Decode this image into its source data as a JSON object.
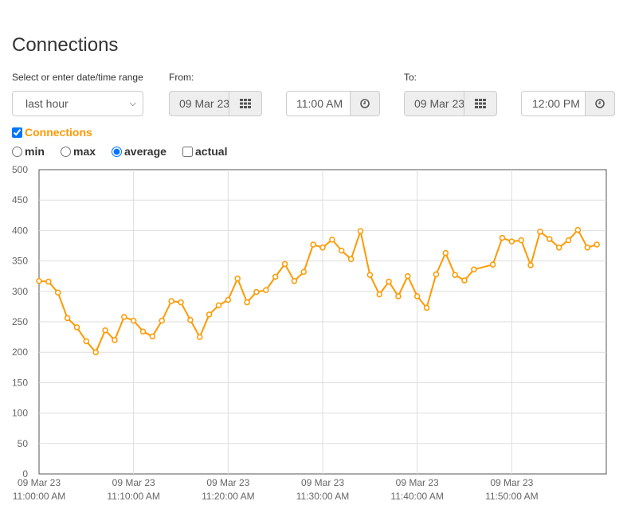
{
  "page_title": "Connections",
  "range": {
    "label": "Select or enter date/time range",
    "value": "last hour"
  },
  "from": {
    "label": "From:",
    "date": "09 Mar 23",
    "time": "11:00 AM"
  },
  "to": {
    "label": "To:",
    "date": "09 Mar 23",
    "time": "12:00 PM"
  },
  "series_toggle": {
    "label": "Connections",
    "checked": true
  },
  "modes": [
    {
      "label": "min",
      "selected": false
    },
    {
      "label": "max",
      "selected": false
    },
    {
      "label": "average",
      "selected": true
    }
  ],
  "actual": {
    "label": "actual",
    "checked": false
  },
  "colors": {
    "series": "#ff9900",
    "grid": "#dddddd",
    "axis": "#555555",
    "accent": "#ff9900"
  },
  "icons": {
    "date_button": "grid-calendar-icon",
    "time_button": "clock-icon"
  },
  "chart_data": {
    "type": "line",
    "title": "",
    "xlabel": "",
    "ylabel": "",
    "ylim": [
      0,
      500
    ],
    "yticks": [
      "0",
      "50",
      "100",
      "150",
      "200",
      "250",
      "300",
      "350",
      "400",
      "450",
      "500"
    ],
    "xlim": [
      0,
      59
    ],
    "xticks": [
      {
        "x": 0,
        "date": "09 Mar 23",
        "time": "11:00:00 AM"
      },
      {
        "x": 10,
        "date": "09 Mar 23",
        "time": "11:10:00 AM"
      },
      {
        "x": 20,
        "date": "09 Mar 23",
        "time": "11:20:00 AM"
      },
      {
        "x": 30,
        "date": "09 Mar 23",
        "time": "11:30:00 AM"
      },
      {
        "x": 40,
        "date": "09 Mar 23",
        "time": "11:40:00 AM"
      },
      {
        "x": 50,
        "date": "09 Mar 23",
        "time": "11:50:00 AM"
      }
    ],
    "grid": true,
    "series": [
      {
        "points": [
          [
            0,
            317
          ],
          [
            1,
            316
          ],
          [
            2,
            298
          ],
          [
            3,
            256
          ],
          [
            4,
            241
          ],
          [
            5,
            218
          ],
          [
            6,
            200
          ],
          [
            7,
            236
          ],
          [
            8,
            220
          ],
          [
            9,
            258
          ],
          [
            10,
            252
          ],
          [
            11,
            234
          ],
          [
            12,
            226
          ],
          [
            13,
            252
          ],
          [
            14,
            284
          ],
          [
            15,
            282
          ],
          [
            16,
            253
          ],
          [
            17,
            225
          ],
          [
            18,
            262
          ],
          [
            19,
            277
          ],
          [
            20,
            286
          ],
          [
            21,
            321
          ],
          [
            22,
            282
          ],
          [
            23,
            299
          ],
          [
            24,
            302
          ],
          [
            25,
            324
          ],
          [
            26,
            345
          ],
          [
            27,
            317
          ],
          [
            28,
            332
          ],
          [
            29,
            377
          ],
          [
            30,
            372
          ],
          [
            31,
            385
          ],
          [
            32,
            367
          ],
          [
            33,
            353
          ],
          [
            34,
            399
          ],
          [
            35,
            327
          ],
          [
            36,
            295
          ],
          [
            37,
            316
          ],
          [
            38,
            292
          ],
          [
            39,
            325
          ],
          [
            40,
            292
          ],
          [
            41,
            273
          ],
          [
            42,
            328
          ],
          [
            43,
            363
          ],
          [
            44,
            327
          ],
          [
            45,
            318
          ],
          [
            46,
            336
          ],
          [
            48,
            344
          ],
          [
            49,
            388
          ],
          [
            50,
            382
          ],
          [
            51,
            384
          ],
          [
            52,
            343
          ],
          [
            53,
            398
          ],
          [
            54,
            386
          ],
          [
            55,
            372
          ],
          [
            56,
            384
          ],
          [
            57,
            401
          ],
          [
            58,
            372
          ],
          [
            59,
            377
          ]
        ]
      }
    ]
  }
}
